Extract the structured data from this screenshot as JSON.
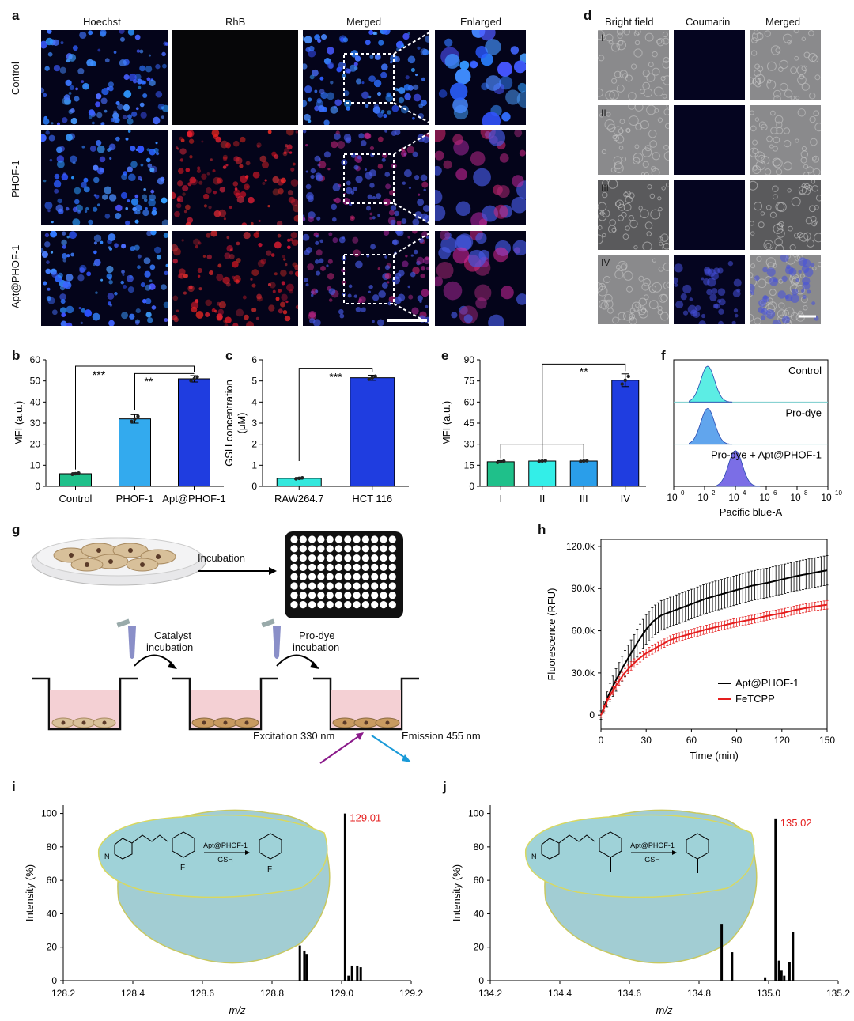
{
  "panel_letters": {
    "a": "a",
    "b": "b",
    "c": "c",
    "d": "d",
    "e": "e",
    "f": "f",
    "g": "g",
    "h": "h",
    "i": "i",
    "j": "j"
  },
  "panel_a": {
    "columns": [
      "Hoechst",
      "RhB",
      "Merged",
      "Enlarged"
    ],
    "rows": [
      "Control",
      "PHOF-1",
      "Apt@PHOF-1"
    ]
  },
  "panel_d": {
    "columns": [
      "Bright field",
      "Coumarin",
      "Merged"
    ],
    "rows": [
      "I",
      "II",
      "III",
      "IV"
    ]
  },
  "panel_g": {
    "incubation": "Incubation",
    "catalyst": [
      "Catalyst",
      "incubation"
    ],
    "prodye": [
      "Pro-dye",
      "incubation"
    ],
    "excitation": "Excitation 330 nm",
    "emission": "Emission 455 nm"
  },
  "colors": {
    "control": "#1fc08a",
    "phof1": "#33aaee",
    "apt": "#1f3de0",
    "raw": "#33e8dd",
    "hct": "#1f3de0",
    "cyan": "#33eee8",
    "blue2": "#2a9eea",
    "black": "#000000",
    "red": "#e51e1e",
    "mfi_i": "#1fc08a",
    "mfi_ii": "#33eee8",
    "mfi_iii": "#2a9eea",
    "mfi_iv": "#1f3de0"
  },
  "chart_data": [
    {
      "panel": "b",
      "type": "bar",
      "categories": [
        "Control",
        "PHOF-1",
        "Apt@PHOF-1"
      ],
      "values": [
        6,
        32,
        51
      ],
      "errors": [
        0.5,
        2,
        1.5
      ],
      "ylabel": "MFI (a.u.)",
      "ylim": [
        0,
        60
      ],
      "yticks": [
        "0",
        "10",
        "20",
        "30",
        "40",
        "50",
        "60"
      ],
      "annotations": [
        "***",
        "**"
      ]
    },
    {
      "panel": "c",
      "type": "bar",
      "categories": [
        "RAW264.7",
        "HCT 116"
      ],
      "values": [
        0.38,
        5.15
      ],
      "errors": [
        0.04,
        0.12
      ],
      "ylabel": [
        "GSH concentration",
        "(μM)"
      ],
      "ylim": [
        0,
        6
      ],
      "yticks": [
        "0",
        "1",
        "2",
        "3",
        "4",
        "5",
        "6"
      ],
      "annotations": [
        "***"
      ]
    },
    {
      "panel": "e",
      "type": "bar",
      "categories": [
        "I",
        "II",
        "III",
        "IV"
      ],
      "values": [
        17.5,
        18,
        18,
        75.5
      ],
      "errors": [
        0.8,
        0.4,
        0.4,
        4.5
      ],
      "ylabel": "MFI (a.u.)",
      "ylim": [
        0,
        90
      ],
      "yticks": [
        "0",
        "15",
        "30",
        "45",
        "60",
        "75",
        "90"
      ],
      "annotations": [
        "**"
      ]
    },
    {
      "panel": "f",
      "type": "histogram",
      "series": [
        "Control",
        "Pro-dye",
        "Pro-dye + Apt@PHOF-1"
      ],
      "peaks_log10": [
        2.2,
        2.2,
        4.0
      ],
      "xlabel": "Pacific blue-A",
      "xticks": [
        "10",
        "10",
        "10",
        "10",
        "10",
        "10"
      ],
      "xtick_exps": [
        "0",
        "2",
        "4",
        "6",
        "8",
        "10"
      ]
    },
    {
      "panel": "h",
      "type": "line",
      "xlabel": "Time (min)",
      "ylabel": "Fluorescence (RFU)",
      "xlim": [
        0,
        150
      ],
      "ylim": [
        -10000,
        125000
      ],
      "xticks": [
        "0",
        "30",
        "60",
        "90",
        "120",
        "150"
      ],
      "yticks": [
        "0",
        "30.0k",
        "60.0k",
        "90.0k",
        "120.0k"
      ],
      "series": [
        {
          "name": "Apt@PHOF-1",
          "x": [
            0,
            5,
            10,
            15,
            20,
            25,
            30,
            35,
            40,
            45,
            50,
            60,
            70,
            80,
            90,
            100,
            110,
            120,
            130,
            140,
            150
          ],
          "y": [
            0,
            14000,
            25000,
            35000,
            44000,
            53000,
            61000,
            67000,
            71000,
            73000,
            75000,
            79000,
            83000,
            86000,
            89000,
            92000,
            94000,
            96500,
            99000,
            101000,
            103000
          ],
          "err": [
            3000,
            6000,
            8000,
            9000,
            9500,
            10000,
            10500,
            10500,
            10500,
            10500,
            10500,
            10500,
            10500,
            10500,
            10500,
            10500,
            10500,
            10500,
            10500,
            10500,
            10500
          ]
        },
        {
          "name": "FeTCPP",
          "x": [
            0,
            5,
            10,
            15,
            20,
            25,
            30,
            35,
            40,
            45,
            50,
            60,
            70,
            80,
            90,
            100,
            110,
            120,
            130,
            140,
            150
          ],
          "y": [
            0,
            12000,
            21000,
            29000,
            35000,
            40000,
            44000,
            47000,
            50000,
            53000,
            55000,
            58000,
            61000,
            63500,
            66000,
            68000,
            70500,
            72500,
            75000,
            77000,
            78500
          ],
          "err": [
            1500,
            2500,
            3000,
            3000,
            3000,
            3000,
            3000,
            3000,
            3000,
            3000,
            3000,
            3000,
            3000,
            3000,
            3000,
            3000,
            3000,
            3000,
            3000,
            3000,
            3000
          ]
        }
      ]
    },
    {
      "panel": "i",
      "type": "spectrum",
      "xlabel": "m/z",
      "ylabel": "Intensity (%)",
      "xlim": [
        128.2,
        129.2
      ],
      "xticks": [
        "128.2",
        "128.4",
        "128.6",
        "128.8",
        "129.0",
        "129.2"
      ],
      "yticks": [
        "0",
        "20",
        "40",
        "60",
        "80",
        "100"
      ],
      "peak_label": "129.01",
      "peaks": [
        [
          128.88,
          21
        ],
        [
          128.893,
          18
        ],
        [
          128.9,
          16
        ],
        [
          129.01,
          100
        ],
        [
          129.02,
          3
        ],
        [
          129.03,
          9
        ],
        [
          129.045,
          9
        ],
        [
          129.055,
          8
        ]
      ],
      "scheme": {
        "reagent1": "Apt@PHOF-1",
        "reagent2": "GSH",
        "sub": "F",
        "n3": "N"
      }
    },
    {
      "panel": "j",
      "type": "spectrum",
      "xlabel": "m/z",
      "ylabel": "Intensity (%)",
      "xlim": [
        134.2,
        135.2
      ],
      "xticks": [
        "134.2",
        "134.4",
        "134.6",
        "134.8",
        "135.0",
        "135.2"
      ],
      "yticks": [
        "0",
        "20",
        "40",
        "60",
        "80",
        "100"
      ],
      "peak_label": "135.02",
      "peaks": [
        [
          134.865,
          34
        ],
        [
          134.895,
          17
        ],
        [
          134.99,
          2
        ],
        [
          135.02,
          97
        ],
        [
          135.03,
          12
        ],
        [
          135.037,
          6
        ],
        [
          135.045,
          3
        ],
        [
          135.06,
          11
        ],
        [
          135.07,
          29
        ]
      ],
      "scheme": {
        "reagent1": "Apt@PHOF-1",
        "reagent2": "GSH",
        "sub": "",
        "n3": "N"
      }
    }
  ]
}
